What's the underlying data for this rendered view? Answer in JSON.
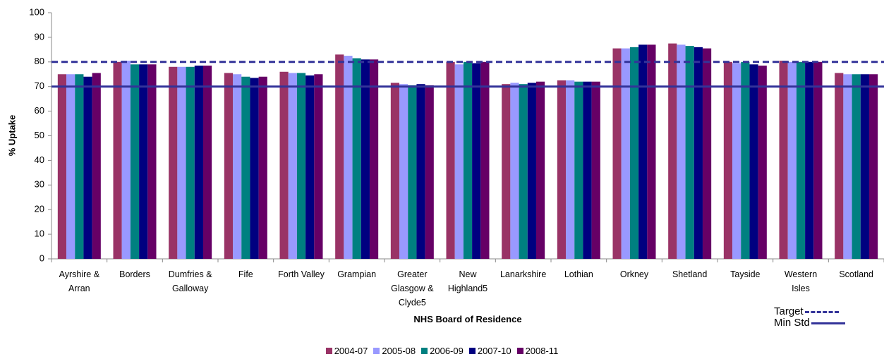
{
  "chart_data": {
    "type": "bar",
    "y_label": "% Uptake",
    "x_label": "NHS Board of Residence",
    "categories": [
      "Ayrshire & Arran",
      "Borders",
      "Dumfries & Galloway",
      "Fife",
      "Forth Valley",
      "Grampian",
      "Greater Glasgow & Clyde5",
      "New Highland5",
      "Lanarkshire",
      "Lothian",
      "Orkney",
      "Shetland",
      "Tayside",
      "Western Isles",
      "Scotland"
    ],
    "series": [
      {
        "name": "2004-07",
        "color": "#993366",
        "values": [
          75,
          80,
          78,
          75.5,
          76,
          83,
          71.5,
          80,
          71,
          72.5,
          85.5,
          87.5,
          80,
          80.5,
          75.5
        ]
      },
      {
        "name": "2005-08",
        "color": "#9999ff",
        "values": [
          75,
          80.5,
          78,
          75,
          75.5,
          82.5,
          71,
          79,
          71.5,
          72.5,
          85.5,
          87,
          79.5,
          80,
          75
        ]
      },
      {
        "name": "2006-09",
        "color": "#008080",
        "values": [
          75,
          79,
          78,
          74,
          75.5,
          81.5,
          70.5,
          80,
          71,
          72,
          86,
          86.5,
          80,
          80,
          75
        ]
      },
      {
        "name": "2007-10",
        "color": "#000080",
        "values": [
          74,
          79,
          78.5,
          73.5,
          74.5,
          81,
          71,
          79.5,
          71.5,
          72,
          87,
          86,
          79,
          80,
          75
        ]
      },
      {
        "name": "2008-11",
        "color": "#660066",
        "values": [
          75.5,
          79,
          78.5,
          74,
          75,
          81,
          70.5,
          80,
          72,
          72,
          87,
          85.5,
          78.5,
          80,
          75
        ]
      }
    ],
    "reference_lines": [
      {
        "name": "Target",
        "value": 80,
        "style": "dashed",
        "color": "#333399"
      },
      {
        "name": "Min Std",
        "value": 70,
        "style": "solid",
        "color": "#333399"
      }
    ],
    "ylim": [
      0,
      100
    ],
    "yticks": [
      0,
      10,
      20,
      30,
      40,
      50,
      60,
      70,
      80,
      90,
      100
    ],
    "grid": false,
    "legend_position": "bottom"
  }
}
